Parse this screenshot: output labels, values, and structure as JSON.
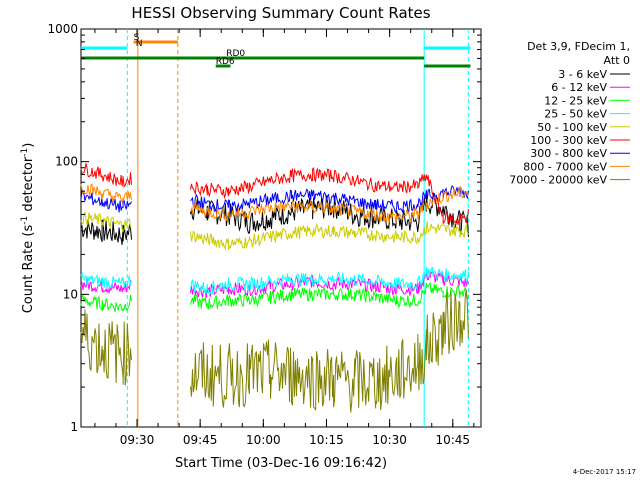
{
  "chart_data": {
    "type": "line",
    "title": "HESSI Observing Summary Count Rates",
    "xlabel": "Start Time (03-Dec-16 09:16:42)",
    "ylabel_main": "Count Rate (s",
    "ylabel_sup": "-1",
    "ylabel_mid": " detector",
    "ylabel_sup2": "-1",
    "ylabel_end": ")",
    "yscale": "log",
    "ylim": [
      1,
      1000
    ],
    "xlim_minutes": [
      0,
      95
    ],
    "x_ticks": [
      {
        "label": "09:30",
        "min": 13.3
      },
      {
        "label": "09:45",
        "min": 28.3
      },
      {
        "label": "10:00",
        "min": 43.3
      },
      {
        "label": "10:15",
        "min": 58.3
      },
      {
        "label": "10:30",
        "min": 73.3
      },
      {
        "label": "10:45",
        "min": 88.3
      }
    ],
    "y_ticks": [
      {
        "label": "1",
        "v": 1
      },
      {
        "label": "10",
        "v": 10
      },
      {
        "label": "100",
        "v": 100
      },
      {
        "label": "1000",
        "v": 1000
      }
    ],
    "legend_header": [
      "Det 3,9, FDecim 1,",
      "Att 0"
    ],
    "series": [
      {
        "name": "3 - 6 keV",
        "color": "#000000",
        "x": [
          0,
          5,
          10,
          12,
          20,
          23,
          26,
          30,
          35,
          40,
          45,
          50,
          55,
          60,
          65,
          70,
          75,
          80,
          82,
          86,
          90,
          92
        ],
        "y": [
          32,
          30,
          28,
          30,
          null,
          null,
          45,
          42,
          40,
          35,
          38,
          42,
          44,
          46,
          40,
          38,
          36,
          35,
          50,
          45,
          35,
          33
        ]
      },
      {
        "name": "6 - 12 keV",
        "color": "#ff00ff",
        "x": [
          0,
          5,
          10,
          12,
          20,
          23,
          26,
          30,
          35,
          40,
          45,
          50,
          55,
          60,
          65,
          70,
          75,
          80,
          82,
          86,
          90,
          92
        ],
        "y": [
          12,
          11.5,
          11,
          12,
          null,
          null,
          11,
          10.5,
          11,
          11,
          11.5,
          12,
          12.5,
          12,
          12,
          11.5,
          11,
          11,
          14,
          13,
          12.5,
          12
        ]
      },
      {
        "name": "12 - 25 keV",
        "color": "#00ff00",
        "x": [
          0,
          5,
          10,
          12,
          20,
          23,
          26,
          30,
          35,
          40,
          45,
          50,
          55,
          60,
          65,
          70,
          75,
          80,
          82,
          86,
          90,
          92
        ],
        "y": [
          9,
          8.5,
          8,
          9,
          null,
          null,
          9,
          8.5,
          9,
          9,
          9.5,
          10,
          10,
          10,
          10,
          9.5,
          9,
          9,
          11,
          10.5,
          10.5,
          10
        ]
      },
      {
        "name": "25 - 50 keV",
        "color": "#00ffff",
        "x": [
          0,
          5,
          10,
          12,
          20,
          23,
          26,
          30,
          35,
          40,
          45,
          50,
          55,
          60,
          65,
          70,
          75,
          80,
          82,
          86,
          90,
          92
        ],
        "y": [
          13,
          12.5,
          12,
          13,
          null,
          null,
          12,
          11,
          12,
          12,
          12.5,
          13,
          13,
          13,
          13,
          12.5,
          12,
          12,
          15,
          14,
          14,
          14
        ]
      },
      {
        "name": "50 - 100 keV",
        "color": "#cccc00",
        "x": [
          0,
          5,
          10,
          12,
          20,
          23,
          26,
          30,
          35,
          40,
          45,
          50,
          55,
          60,
          65,
          70,
          75,
          80,
          82,
          86,
          90,
          92
        ],
        "y": [
          38,
          36,
          33,
          35,
          null,
          null,
          28,
          26,
          24,
          25,
          27,
          29,
          30,
          30,
          29,
          28,
          27,
          27,
          32,
          31,
          30,
          30
        ]
      },
      {
        "name": "100 - 300 keV",
        "color": "#ff0000",
        "x": [
          0,
          5,
          10,
          12,
          20,
          23,
          26,
          30,
          35,
          40,
          45,
          50,
          55,
          60,
          65,
          70,
          75,
          80,
          82,
          86,
          90,
          92
        ],
        "y": [
          90,
          80,
          70,
          75,
          null,
          null,
          65,
          62,
          60,
          65,
          72,
          78,
          80,
          78,
          72,
          66,
          64,
          66,
          78,
          38,
          36,
          40
        ]
      },
      {
        "name": "300 - 800 keV",
        "color": "#0000ff",
        "x": [
          0,
          5,
          10,
          12,
          20,
          23,
          26,
          30,
          35,
          40,
          45,
          50,
          55,
          60,
          65,
          70,
          75,
          80,
          82,
          86,
          90,
          92
        ],
        "y": [
          55,
          50,
          45,
          48,
          null,
          null,
          52,
          48,
          46,
          48,
          52,
          55,
          56,
          54,
          50,
          47,
          46,
          48,
          55,
          58,
          60,
          58
        ]
      },
      {
        "name": "800 - 7000 keV",
        "color": "#ff8800",
        "x": [
          0,
          5,
          10,
          12,
          20,
          23,
          26,
          30,
          35,
          40,
          45,
          50,
          55,
          60,
          65,
          70,
          75,
          80,
          82,
          86,
          90,
          92
        ],
        "y": [
          65,
          58,
          52,
          56,
          null,
          null,
          46,
          42,
          40,
          42,
          45,
          46,
          45,
          44,
          42,
          40,
          38,
          40,
          48,
          55,
          58,
          58
        ]
      },
      {
        "name": "7000 - 20000 keV",
        "color": "#808000",
        "x": [
          0,
          5,
          10,
          12,
          20,
          23,
          26,
          30,
          35,
          40,
          45,
          50,
          55,
          60,
          65,
          70,
          75,
          80,
          82,
          86,
          90,
          92
        ],
        "y": [
          5,
          4,
          3.5,
          4,
          null,
          null,
          2.5,
          2.5,
          2.4,
          2.5,
          2.6,
          2.5,
          2.4,
          2.3,
          2.2,
          2.2,
          2.5,
          3,
          4,
          5.5,
          7,
          7.5
        ]
      }
    ],
    "annotations": [
      {
        "label": "S",
        "color": "#ff8800",
        "x1": 12.5,
        "x2": 23,
        "level": 0
      },
      {
        "label": "N",
        "color": "#00ffff",
        "x1": 13,
        "x2": 13,
        "level": 1
      },
      {
        "label": "RD0",
        "color": "#008000",
        "x1": 0,
        "x2": 81.5,
        "level": 2
      },
      {
        "label": "RD6",
        "color": "#008000",
        "x1": 32,
        "x2": 35.5,
        "level": 3
      }
    ],
    "vlines": [
      {
        "min": 11,
        "color": "#00ffff",
        "dash": true
      },
      {
        "min": 13.5,
        "color": "#ff8800",
        "dash": false
      },
      {
        "min": 23,
        "color": "#ff8800",
        "dash": true
      },
      {
        "min": 81.5,
        "color": "#00ffff",
        "dash": false
      },
      {
        "min": 92,
        "color": "#00ffff",
        "dash": true
      }
    ]
  },
  "footer": "4-Dec-2017 15:17"
}
